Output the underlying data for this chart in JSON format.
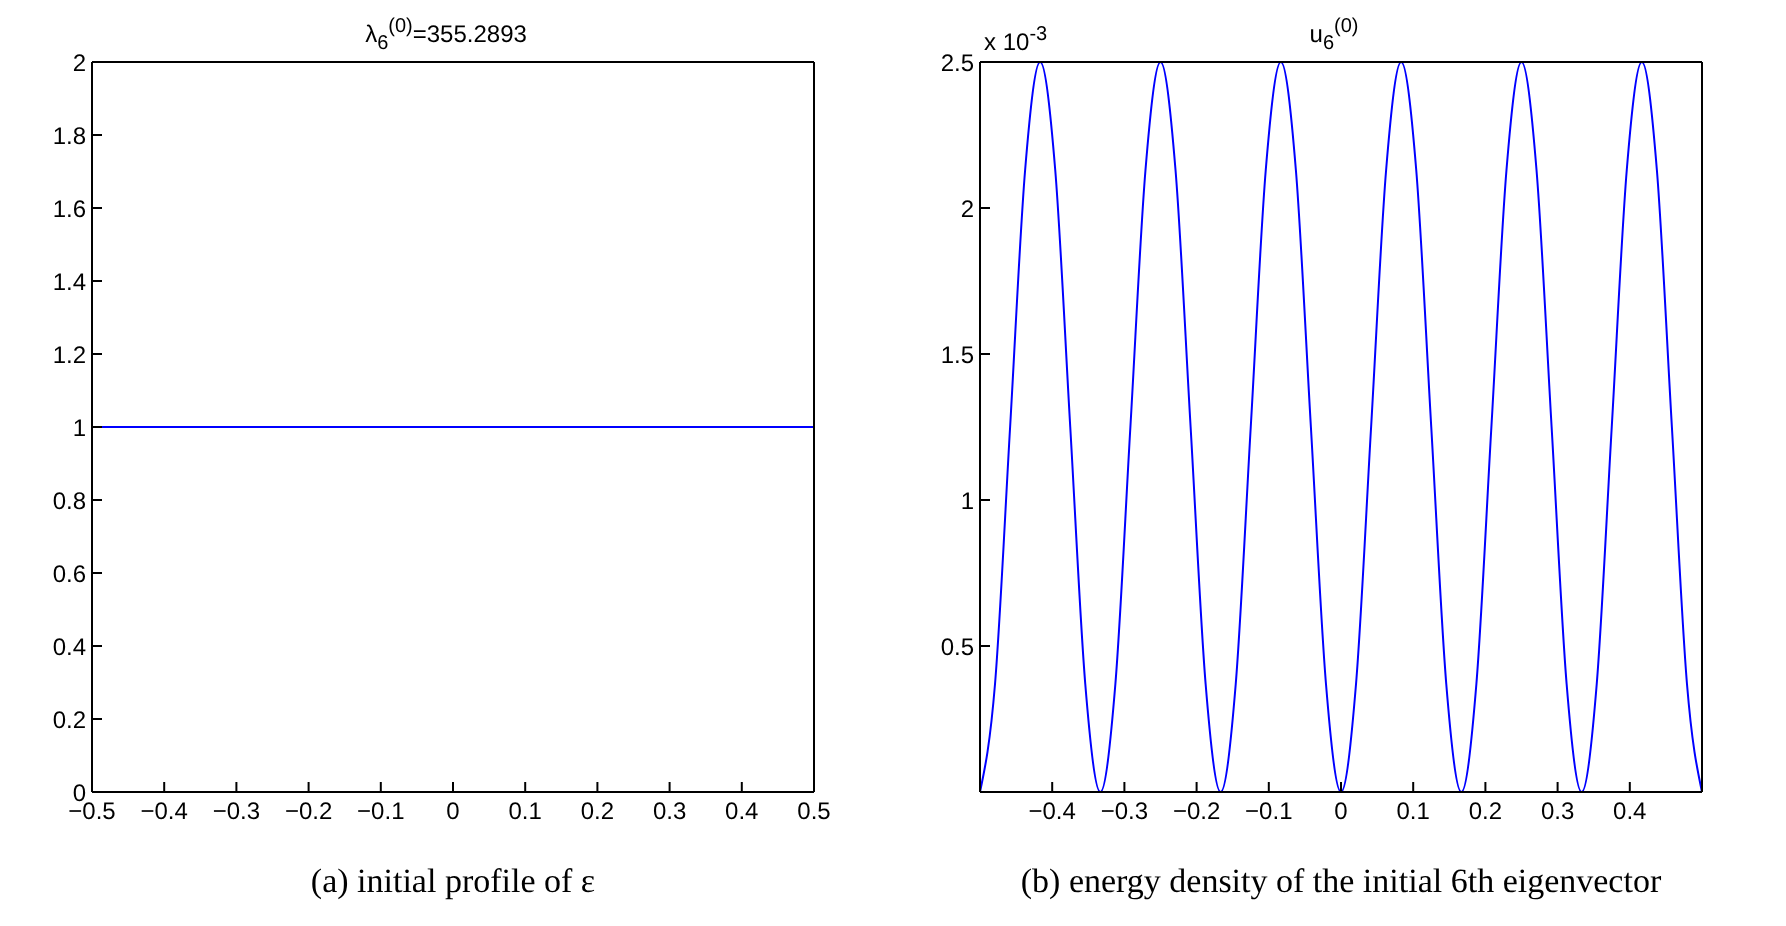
{
  "chart_data": [
    {
      "type": "line",
      "title": "λ$_{6}$$^{(0)}$=355.2893",
      "xlabel": "(a)  initial profile of ε",
      "x": [
        -0.5,
        0.5
      ],
      "series": [
        {
          "color": "#0000ff",
          "values": [
            1,
            1
          ]
        }
      ],
      "xlim": [
        -0.5,
        0.5
      ],
      "xticks": [
        {
          "value": -0.5,
          "label": "−0.5"
        },
        {
          "value": -0.4,
          "label": "−0.4"
        },
        {
          "value": -0.3,
          "label": "−0.3"
        },
        {
          "value": -0.2,
          "label": "−0.2"
        },
        {
          "value": -0.1,
          "label": "−0.1"
        },
        0,
        0.1,
        0.2,
        0.3,
        0.4,
        0.5
      ],
      "ylim": [
        0,
        2
      ],
      "yticks": [
        0,
        0.2,
        0.4,
        0.6,
        0.8,
        1,
        1.2,
        1.4,
        1.6,
        1.8,
        2
      ],
      "grid": false,
      "marker": "none",
      "line_style": "solid"
    },
    {
      "type": "line",
      "title": "u$_{6}$$^{(0)}$",
      "xlabel": "(b)  energy density of the initial 6th eigenvector",
      "annotations": [
        "x 10$^{-3}$"
      ],
      "x": [
        -0.5,
        -0.4792,
        -0.4583,
        -0.4375,
        -0.4167,
        -0.3958,
        -0.375,
        -0.3542,
        -0.3333,
        -0.3125,
        -0.2917,
        -0.2708,
        -0.25,
        -0.2292,
        -0.2083,
        -0.1875,
        -0.1667,
        -0.1458,
        -0.125,
        -0.1042,
        -0.0833,
        -0.0625,
        -0.0417,
        -0.0208,
        0,
        0.0208,
        0.0417,
        0.0625,
        0.0833,
        0.1042,
        0.125,
        0.1458,
        0.1667,
        0.1875,
        0.2083,
        0.2292,
        0.25,
        0.2708,
        0.2917,
        0.3125,
        0.3333,
        0.3542,
        0.375,
        0.3958,
        0.4167,
        0.4375,
        0.4583,
        0.4792,
        0.5
      ],
      "series": [
        {
          "color": "#0000ff",
          "values": [
            0,
            0.37,
            1.25,
            2.13,
            2.5,
            2.13,
            1.25,
            0.37,
            0,
            0.37,
            1.25,
            2.13,
            2.5,
            2.13,
            1.25,
            0.37,
            0,
            0.37,
            1.25,
            2.13,
            2.5,
            2.13,
            1.25,
            0.37,
            0,
            0.37,
            1.25,
            2.13,
            2.5,
            2.13,
            1.25,
            0.37,
            0,
            0.37,
            1.25,
            2.13,
            2.5,
            2.13,
            1.25,
            0.37,
            0,
            0.37,
            1.25,
            2.13,
            2.5,
            2.13,
            1.25,
            0.37,
            0
          ]
        }
      ],
      "xlim": [
        -0.5,
        0.5
      ],
      "xticks": [
        {
          "value": -0.4,
          "label": "−0.4"
        },
        {
          "value": -0.3,
          "label": "−0.3"
        },
        {
          "value": -0.2,
          "label": "−0.2"
        },
        {
          "value": -0.1,
          "label": "−0.1"
        },
        0,
        0.1,
        0.2,
        0.3,
        0.4
      ],
      "ylim": [
        0,
        2.5
      ],
      "yticks": [
        0.5,
        1,
        1.5,
        2,
        2.5
      ],
      "grid": false,
      "marker": "none",
      "line_style": "solid"
    }
  ]
}
